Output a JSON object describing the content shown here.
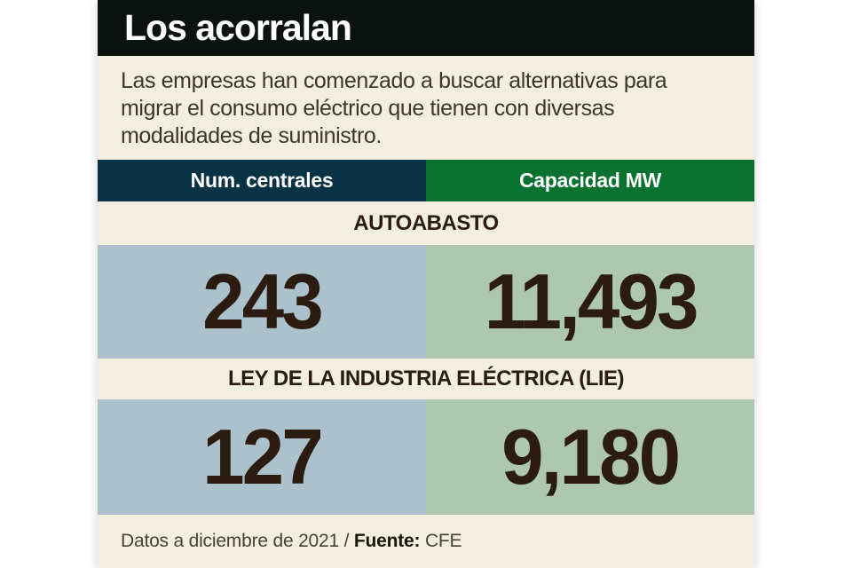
{
  "title": "Los acorralan",
  "subtitle": {
    "lines": [
      "Las empresas han comenzado a buscar alternativas para",
      "migrar el consumo eléctrico que tienen con diversas",
      "modalidades de suministro."
    ]
  },
  "columns": [
    {
      "label": "Num. centrales",
      "header_color": "#0a3245",
      "cell_color": "#abc2cc"
    },
    {
      "label": "Capacidad MW",
      "header_color": "#0a7230",
      "cell_color": "#adc7b0"
    }
  ],
  "sections": [
    {
      "label": "AUTOABASTO",
      "num_centrales": "243",
      "capacidad_mw": "11,493"
    },
    {
      "label": "LEY DE LA INDUSTRIA ELÉCTRICA (LIE)",
      "num_centrales": "127",
      "capacidad_mw": "9,180"
    }
  ],
  "footer": {
    "note": "Datos a diciembre de 2021 / ",
    "source_label": "Fuente:",
    "source_value": " CFE"
  },
  "colors": {
    "title_bar_bg": "#0c1210",
    "card_bg": "#f2efe0",
    "header_navy": "#0a3245",
    "header_green": "#0a7230",
    "cell_blue": "#abc2cc",
    "cell_green": "#adc7b0",
    "title_text": "#ffffff",
    "number_text": "#2b1b10",
    "subtitle_text": "#3c362b"
  },
  "chart_data": {
    "type": "table",
    "title": "Los acorralan",
    "subtitle": "Las empresas han comenzado a buscar alternativas para migrar el consumo eléctrico que tienen con diversas modalidades de suministro.",
    "columns": [
      "Num. centrales",
      "Capacidad MW"
    ],
    "rows": [
      {
        "category": "AUTOABASTO",
        "num_centrales": 243,
        "capacidad_mw": 11493
      },
      {
        "category": "LEY DE LA INDUSTRIA ELÉCTRICA (LIE)",
        "num_centrales": 127,
        "capacidad_mw": 9180
      }
    ],
    "note": "Datos a diciembre de 2021",
    "source": "CFE"
  }
}
